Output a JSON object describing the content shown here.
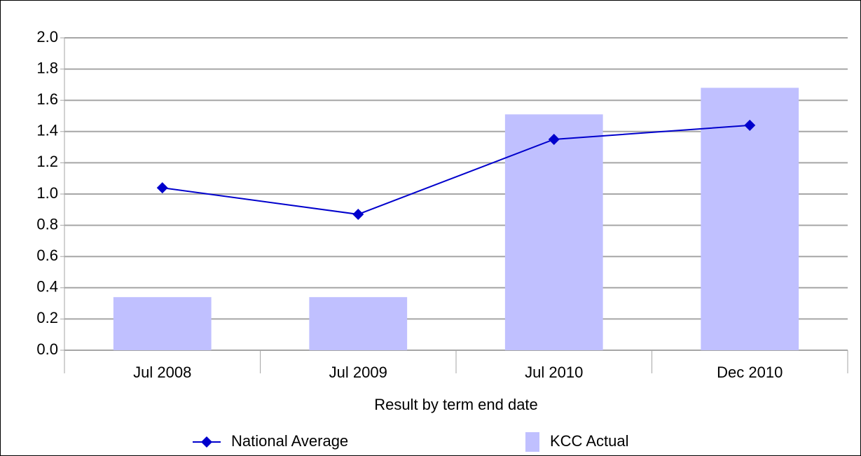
{
  "chart_data": {
    "type": "bar",
    "categories": [
      "Jul 2008",
      "Jul 2009",
      "Jul 2010",
      "Dec 2010"
    ],
    "series": [
      {
        "name": "National Average",
        "type": "line",
        "color": "#0000cc",
        "values": [
          1.04,
          0.87,
          1.35,
          1.44
        ]
      },
      {
        "name": "KCC Actual",
        "type": "bar",
        "color": "#c0c0ff",
        "values": [
          0.34,
          0.34,
          1.51,
          1.68
        ]
      }
    ],
    "x_label": "Result by term end date",
    "ylim": [
      0,
      2
    ],
    "yticks": [
      {
        "value": 0,
        "label": "0.0"
      },
      0.2,
      0.4,
      0.6,
      0.8,
      {
        "value": 1,
        "label": "1.0"
      },
      1.2,
      1.4,
      1.6,
      1.8,
      {
        "value": 2,
        "label": "2.0"
      }
    ],
    "grid": true,
    "legend": "bottom"
  }
}
